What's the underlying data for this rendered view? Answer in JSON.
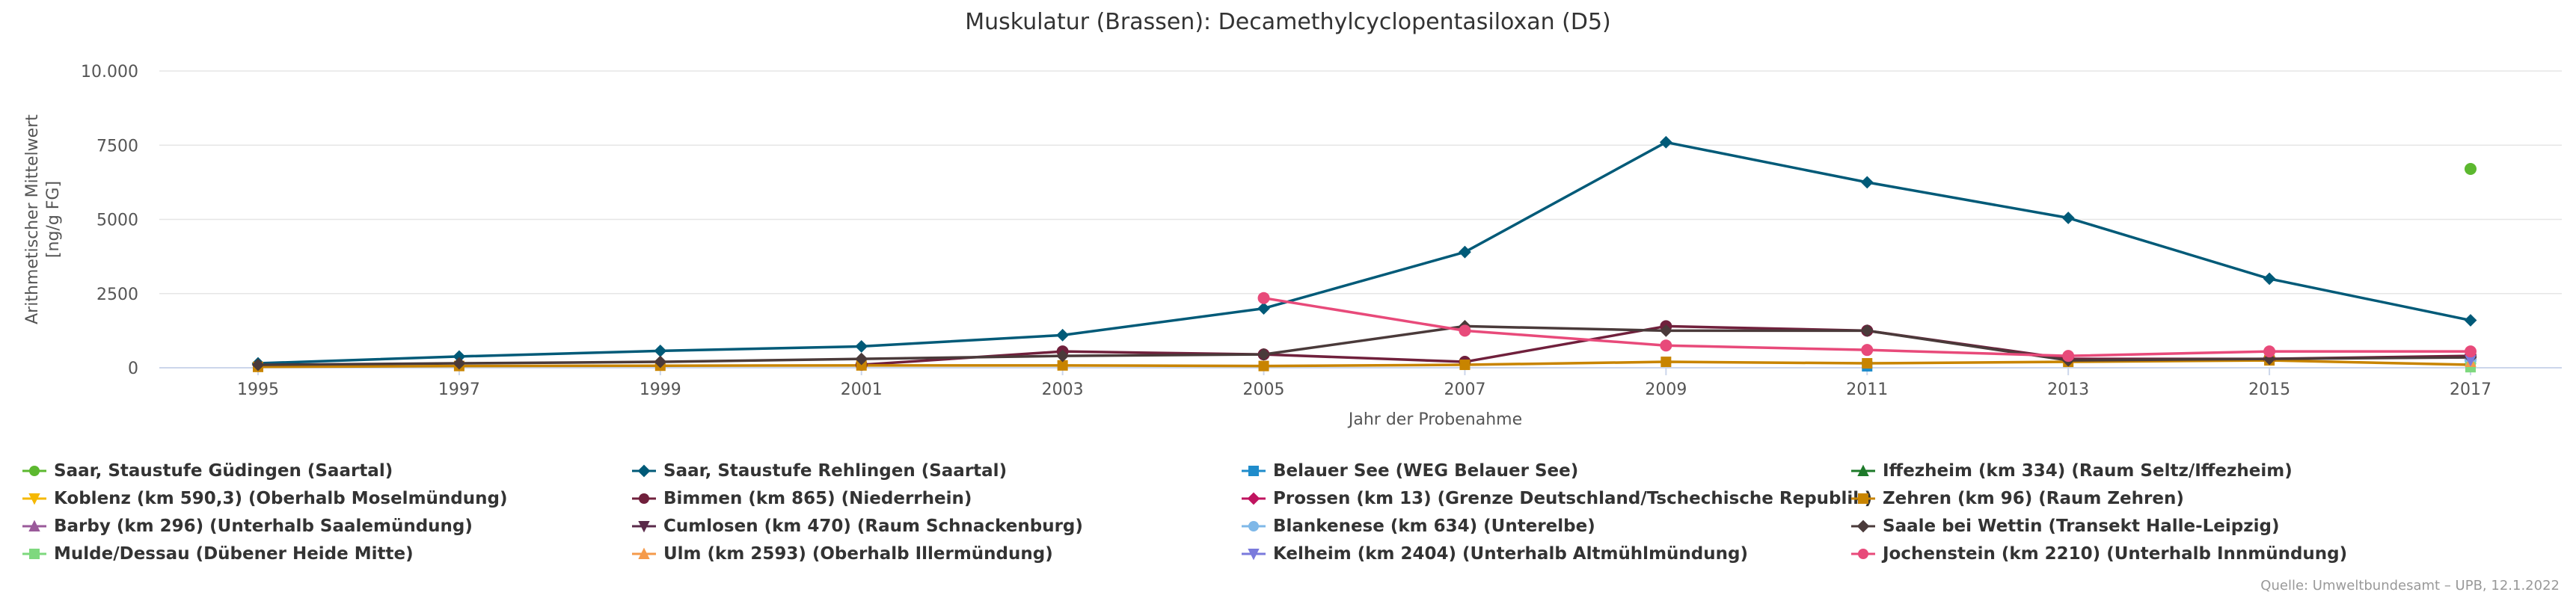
{
  "chart_data": {
    "type": "line",
    "title": "Muskulatur (Brassen): Decamethylcyclopentasiloxan (D5)",
    "xlabel": "Jahr der Probenahme",
    "ylabel_lines": [
      "Arithmetischer Mittelwert",
      "[ng/g FG]"
    ],
    "x": [
      1995,
      1997,
      1999,
      2001,
      2003,
      2005,
      2007,
      2009,
      2011,
      2013,
      2015,
      2017
    ],
    "x_tick_labels": [
      "1995",
      "1997",
      "1999",
      "2001",
      "2003",
      "2005",
      "2007",
      "2009",
      "2011",
      "2013",
      "2015",
      "2017"
    ],
    "ylim": [
      0,
      10000
    ],
    "y_ticks": [
      0,
      2500,
      5000,
      7500,
      10000
    ],
    "y_tick_labels": [
      "0",
      "2500",
      "5000",
      "7500",
      "10.000"
    ],
    "grid": true,
    "legend_position": "bottom",
    "series": [
      {
        "name": "Saar, Staustufe Güdingen (Saartal)",
        "color": "#5cb82f",
        "marker": "circle",
        "values": [
          null,
          null,
          null,
          null,
          null,
          null,
          null,
          null,
          null,
          null,
          null,
          6700
        ]
      },
      {
        "name": "Saar, Staustufe Rehlingen (Saartal)",
        "color": "#005a78",
        "marker": "diamond",
        "values": [
          150,
          380,
          570,
          720,
          1100,
          2000,
          3900,
          7600,
          6250,
          5050,
          3000,
          1600
        ]
      },
      {
        "name": "Belauer See (WEG Belauer See)",
        "color": "#1f8ccb",
        "marker": "square",
        "values": [
          null,
          null,
          null,
          null,
          null,
          null,
          null,
          null,
          50,
          null,
          null,
          null
        ]
      },
      {
        "name": "Iffezheim (km 334) (Raum Seltz/Iffezheim)",
        "color": "#1e7a2a",
        "marker": "triangle",
        "values": [
          null,
          null,
          null,
          null,
          null,
          null,
          null,
          null,
          null,
          null,
          null,
          300
        ]
      },
      {
        "name": "Koblenz (km 590,3) (Oberhalb Moselmündung)",
        "color": "#f5b800",
        "marker": "triangle-down",
        "values": [
          null,
          null,
          null,
          null,
          null,
          null,
          null,
          null,
          null,
          null,
          null,
          350
        ]
      },
      {
        "name": "Bimmen (km 865) (Niederrhein)",
        "color": "#70203c",
        "marker": "circle",
        "values": [
          null,
          null,
          null,
          100,
          550,
          450,
          200,
          1400,
          1250,
          300,
          300,
          400
        ]
      },
      {
        "name": "Prossen (km 13) (Grenze Deutschland/Tschechische Republik)",
        "color": "#c0135f",
        "marker": "diamond",
        "values": [
          null,
          null,
          null,
          null,
          null,
          null,
          null,
          null,
          null,
          null,
          null,
          300
        ]
      },
      {
        "name": "Zehren (km 96) (Raum Zehren)",
        "color": "#c88400",
        "marker": "square",
        "values": [
          30,
          60,
          70,
          80,
          80,
          60,
          100,
          200,
          150,
          200,
          250,
          100
        ]
      },
      {
        "name": "Barby (km 296) (Unterhalb Saalemündung)",
        "color": "#9a5a9a",
        "marker": "triangle",
        "values": [
          null,
          null,
          null,
          null,
          null,
          null,
          null,
          null,
          null,
          null,
          null,
          350
        ]
      },
      {
        "name": "Cumlosen (km 470) (Raum Schnackenburg)",
        "color": "#5a2a4a",
        "marker": "triangle-down",
        "values": [
          null,
          null,
          null,
          null,
          null,
          null,
          null,
          null,
          null,
          null,
          null,
          300
        ]
      },
      {
        "name": "Blankenese (km 634) (Unterelbe)",
        "color": "#7fb8e8",
        "marker": "circle",
        "values": [
          null,
          null,
          null,
          null,
          null,
          null,
          null,
          null,
          null,
          null,
          null,
          250
        ]
      },
      {
        "name": "Saale bei Wettin (Transekt Halle-Leipzig)",
        "color": "#4a3a3a",
        "marker": "diamond",
        "values": [
          100,
          150,
          200,
          300,
          400,
          450,
          1400,
          1250,
          1250,
          250,
          300,
          350
        ]
      },
      {
        "name": "Mulde/Dessau (Dübener Heide Mitte)",
        "color": "#7ed87e",
        "marker": "square",
        "values": [
          null,
          null,
          null,
          null,
          null,
          null,
          null,
          null,
          null,
          null,
          null,
          20
        ]
      },
      {
        "name": "Ulm (km 2593) (Oberhalb Illermündung)",
        "color": "#f59a4a",
        "marker": "triangle",
        "values": [
          null,
          null,
          null,
          null,
          null,
          null,
          null,
          null,
          null,
          null,
          null,
          200
        ]
      },
      {
        "name": "Kelheim (km 2404) (Unterhalb Altmühlmündung)",
        "color": "#7a7adc",
        "marker": "triangle-down",
        "values": [
          null,
          null,
          null,
          null,
          null,
          null,
          null,
          null,
          null,
          null,
          null,
          250
        ]
      },
      {
        "name": "Jochenstein (km 2210) (Unterhalb Innmündung)",
        "color": "#e84a7a",
        "marker": "circle",
        "values": [
          null,
          null,
          null,
          null,
          null,
          2350,
          1250,
          750,
          600,
          400,
          550,
          550
        ]
      }
    ],
    "source": "Quelle: Umweltbundesamt – UPB, 12.1.2022"
  }
}
